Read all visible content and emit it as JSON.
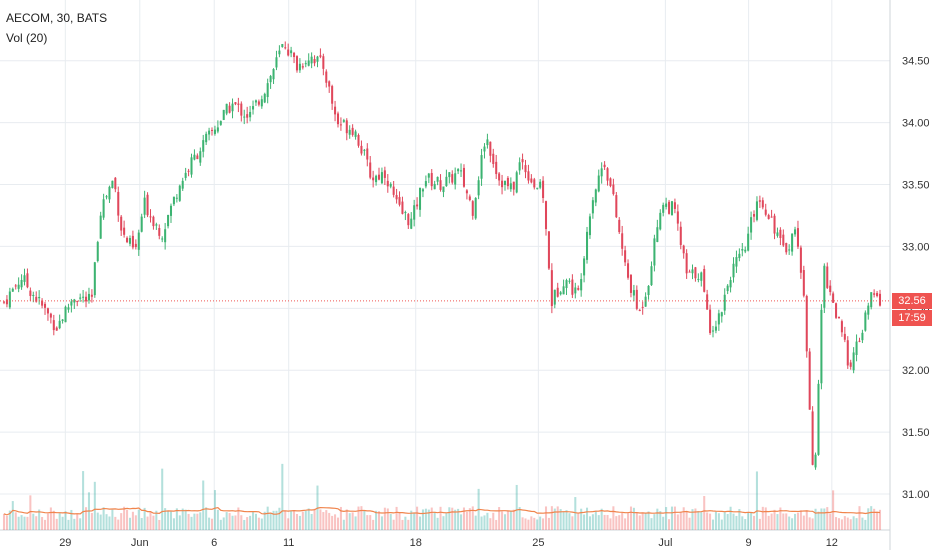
{
  "legend": {
    "symbol_line": "AECOM, 30, BATS",
    "volume_line": "Vol (20)"
  },
  "price_tag": {
    "price": "32.56",
    "countdown": "17:59"
  },
  "colors": {
    "up": "#26a69a",
    "down": "#ef5350",
    "up_body": "#3cb371",
    "down_body": "#e0475b",
    "vol_ma": "#f0844c",
    "current_line": "#ef5350",
    "grid": "#e8ecf0",
    "axis_text": "#333333"
  },
  "chart_data": {
    "type": "candlestick",
    "symbol": "AECOM",
    "interval": "30",
    "exchange": "BATS",
    "current_price": 32.56,
    "ylim": [
      30.75,
      34.95
    ],
    "y_ticks": [
      "31.00",
      "31.50",
      "32.00",
      "32.50",
      "33.00",
      "33.50",
      "34.00",
      "34.50"
    ],
    "x_ticks": [
      "29",
      "Jun",
      "6",
      "11",
      "18",
      "25",
      "Jul",
      "9",
      "12"
    ],
    "x_tick_positions": [
      0.07,
      0.155,
      0.24,
      0.325,
      0.47,
      0.61,
      0.755,
      0.85,
      0.945
    ],
    "grid": true,
    "volume_ma_period": 20,
    "approx_close_path": [
      {
        "t": 0.0,
        "c": 32.55
      },
      {
        "t": 0.02,
        "c": 32.75
      },
      {
        "t": 0.04,
        "c": 32.55
      },
      {
        "t": 0.06,
        "c": 32.35
      },
      {
        "t": 0.08,
        "c": 32.6
      },
      {
        "t": 0.1,
        "c": 32.55
      },
      {
        "t": 0.11,
        "c": 33.3
      },
      {
        "t": 0.125,
        "c": 33.55
      },
      {
        "t": 0.135,
        "c": 33.1
      },
      {
        "t": 0.15,
        "c": 32.95
      },
      {
        "t": 0.16,
        "c": 33.35
      },
      {
        "t": 0.18,
        "c": 33.1
      },
      {
        "t": 0.2,
        "c": 33.5
      },
      {
        "t": 0.22,
        "c": 33.75
      },
      {
        "t": 0.24,
        "c": 33.95
      },
      {
        "t": 0.26,
        "c": 34.15
      },
      {
        "t": 0.28,
        "c": 34.05
      },
      {
        "t": 0.3,
        "c": 34.3
      },
      {
        "t": 0.32,
        "c": 34.65
      },
      {
        "t": 0.335,
        "c": 34.45
      },
      {
        "t": 0.35,
        "c": 34.55
      },
      {
        "t": 0.365,
        "c": 34.45
      },
      {
        "t": 0.38,
        "c": 34.0
      },
      {
        "t": 0.4,
        "c": 33.95
      },
      {
        "t": 0.42,
        "c": 33.55
      },
      {
        "t": 0.435,
        "c": 33.6
      },
      {
        "t": 0.45,
        "c": 33.3
      },
      {
        "t": 0.465,
        "c": 33.2
      },
      {
        "t": 0.48,
        "c": 33.55
      },
      {
        "t": 0.5,
        "c": 33.5
      },
      {
        "t": 0.52,
        "c": 33.6
      },
      {
        "t": 0.535,
        "c": 33.3
      },
      {
        "t": 0.55,
        "c": 33.9
      },
      {
        "t": 0.565,
        "c": 33.55
      },
      {
        "t": 0.58,
        "c": 33.45
      },
      {
        "t": 0.59,
        "c": 33.7
      },
      {
        "t": 0.605,
        "c": 33.5
      },
      {
        "t": 0.615,
        "c": 33.45
      },
      {
        "t": 0.625,
        "c": 32.55
      },
      {
        "t": 0.64,
        "c": 32.75
      },
      {
        "t": 0.655,
        "c": 32.6
      },
      {
        "t": 0.67,
        "c": 33.35
      },
      {
        "t": 0.685,
        "c": 33.7
      },
      {
        "t": 0.695,
        "c": 33.4
      },
      {
        "t": 0.71,
        "c": 32.8
      },
      {
        "t": 0.725,
        "c": 32.45
      },
      {
        "t": 0.735,
        "c": 32.7
      },
      {
        "t": 0.75,
        "c": 33.35
      },
      {
        "t": 0.765,
        "c": 33.3
      },
      {
        "t": 0.78,
        "c": 32.75
      },
      {
        "t": 0.795,
        "c": 32.8
      },
      {
        "t": 0.805,
        "c": 32.35
      },
      {
        "t": 0.815,
        "c": 32.4
      },
      {
        "t": 0.83,
        "c": 32.8
      },
      {
        "t": 0.845,
        "c": 32.95
      },
      {
        "t": 0.86,
        "c": 33.4
      },
      {
        "t": 0.875,
        "c": 33.25
      },
      {
        "t": 0.89,
        "c": 32.95
      },
      {
        "t": 0.905,
        "c": 33.15
      },
      {
        "t": 0.915,
        "c": 32.4
      },
      {
        "t": 0.925,
        "c": 31.0
      },
      {
        "t": 0.935,
        "c": 32.85
      },
      {
        "t": 0.95,
        "c": 32.45
      },
      {
        "t": 0.965,
        "c": 32.05
      },
      {
        "t": 0.975,
        "c": 32.2
      },
      {
        "t": 0.99,
        "c": 32.6
      },
      {
        "t": 1.0,
        "c": 32.56
      }
    ]
  }
}
